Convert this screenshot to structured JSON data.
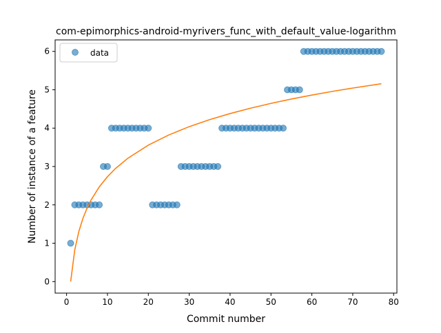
{
  "chart_data": {
    "type": "scatter",
    "title": "com-epimorphics-android-myrivers_func_with_default_value-logarithm",
    "xlabel": "Commit number",
    "ylabel": "Number of instance of a feature",
    "xlim": [
      -2.8,
      80.8
    ],
    "ylim": [
      -0.3,
      6.3
    ],
    "xticks": [
      0,
      10,
      20,
      30,
      40,
      50,
      60,
      70,
      80
    ],
    "yticks": [
      0,
      1,
      2,
      3,
      4,
      5,
      6
    ],
    "grid": false,
    "legend": {
      "placement": "top-left",
      "entries": [
        "data"
      ]
    },
    "colors": {
      "data": "#1f77b4",
      "fit": "#ff7f0e"
    },
    "series": [
      {
        "name": "data",
        "kind": "scatter",
        "x": [
          1,
          2,
          3,
          4,
          5,
          6,
          7,
          8,
          9,
          10,
          11,
          12,
          13,
          14,
          15,
          16,
          17,
          18,
          19,
          20,
          21,
          22,
          23,
          24,
          25,
          26,
          27,
          28,
          29,
          30,
          31,
          32,
          33,
          34,
          35,
          36,
          37,
          38,
          39,
          40,
          41,
          42,
          43,
          44,
          45,
          46,
          47,
          48,
          49,
          50,
          51,
          52,
          53,
          54,
          55,
          56,
          57,
          58,
          59,
          60,
          61,
          62,
          63,
          64,
          65,
          66,
          67,
          68,
          69,
          70,
          71,
          72,
          73,
          74,
          75,
          76,
          77
        ],
        "y": [
          1,
          2,
          2,
          2,
          2,
          2,
          2,
          2,
          3,
          3,
          4,
          4,
          4,
          4,
          4,
          4,
          4,
          4,
          4,
          4,
          2,
          2,
          2,
          2,
          2,
          2,
          2,
          3,
          3,
          3,
          3,
          3,
          3,
          3,
          3,
          3,
          3,
          4,
          4,
          4,
          4,
          4,
          4,
          4,
          4,
          4,
          4,
          4,
          4,
          4,
          4,
          4,
          4,
          5,
          5,
          5,
          5,
          6,
          6,
          6,
          6,
          6,
          6,
          6,
          6,
          6,
          6,
          6,
          6,
          6,
          6,
          6,
          6,
          6,
          6,
          6,
          6
        ]
      },
      {
        "kind": "line",
        "fit": "logarithmic",
        "x": [
          1,
          2,
          3,
          4,
          5,
          6,
          8,
          10,
          12,
          15,
          20,
          25,
          30,
          35,
          40,
          45,
          50,
          55,
          60,
          65,
          70,
          77
        ],
        "y": [
          0.0,
          0.823,
          1.305,
          1.646,
          1.911,
          2.127,
          2.469,
          2.734,
          2.951,
          3.215,
          3.557,
          3.822,
          4.039,
          4.222,
          4.38,
          4.52,
          4.645,
          4.759,
          4.862,
          4.957,
          5.045,
          5.158
        ]
      }
    ]
  }
}
